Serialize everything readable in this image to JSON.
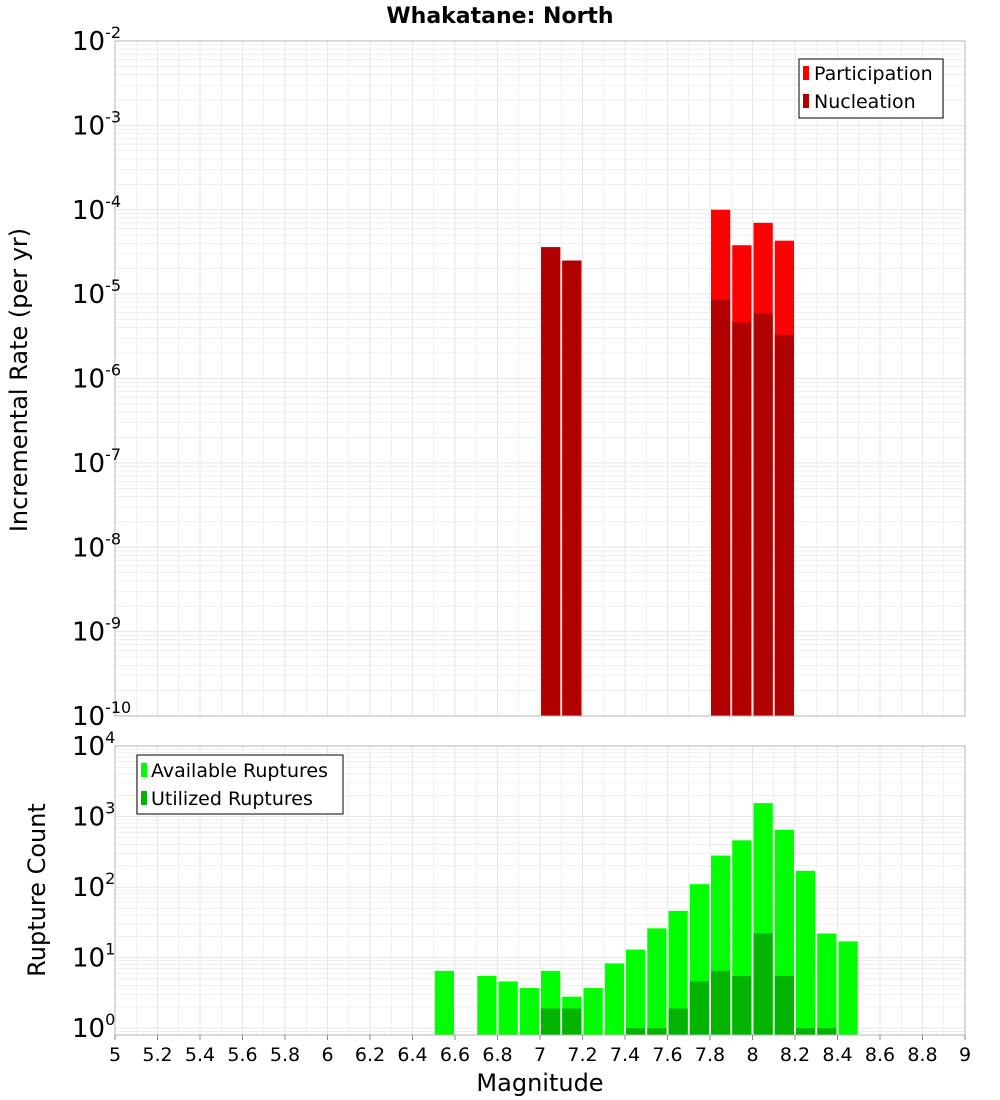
{
  "title": "Whakatane: North",
  "colors": {
    "participation": "#ff0000",
    "nucleation": "#b00000",
    "available": "#00ff00",
    "utilized": "#00b400",
    "grid": "#e6e6e6",
    "frame": "#b4b4b4"
  },
  "chart_data": [
    {
      "type": "bar",
      "panel": "top",
      "ylabel": "Incremental Rate (per yr)",
      "yscale": "log",
      "ylim": [
        1e-10,
        0.01
      ],
      "xlim": [
        5,
        9
      ],
      "bin_width": 0.1,
      "y_tick_exponents": [
        -10,
        -9,
        -8,
        -7,
        -6,
        -5,
        -4,
        -3,
        -2
      ],
      "legend": {
        "placement": "top-right",
        "entries": [
          "Participation",
          "Nucleation"
        ]
      },
      "series": [
        {
          "name": "Participation",
          "x": [
            7.05,
            7.15,
            7.85,
            7.95,
            8.05,
            8.15
          ],
          "values": [
            3.6e-05,
            2.5e-05,
            0.0001,
            3.8e-05,
            7e-05,
            4.3e-05
          ]
        },
        {
          "name": "Nucleation",
          "x": [
            7.05,
            7.15,
            7.85,
            7.95,
            8.05,
            8.15
          ],
          "values": [
            3.6e-05,
            2.5e-05,
            8.5e-06,
            4.6e-06,
            5.9e-06,
            3.3e-06
          ]
        }
      ]
    },
    {
      "type": "bar",
      "panel": "bottom",
      "xlabel": "Magnitude",
      "ylabel": "Rupture Count",
      "yscale": "log",
      "ylim": [
        0.8,
        10000
      ],
      "xlim": [
        5,
        9
      ],
      "bin_width": 0.1,
      "y_tick_exponents": [
        0,
        1,
        2,
        3,
        4
      ],
      "x_ticks": [
        "5",
        "5.2",
        "5.4",
        "5.6",
        "5.8",
        "6",
        "6.2",
        "6.4",
        "6.6",
        "6.8",
        "7",
        "7.2",
        "7.4",
        "7.6",
        "7.8",
        "8",
        "8.2",
        "8.4",
        "8.6",
        "8.8",
        "9"
      ],
      "legend": {
        "placement": "top-left",
        "entries": [
          "Available Ruptures",
          "Utilized Ruptures"
        ]
      },
      "series": [
        {
          "name": "Available Ruptures",
          "x": [
            6.55,
            6.75,
            6.85,
            6.95,
            7.05,
            7.15,
            7.25,
            7.35,
            7.45,
            7.55,
            7.65,
            7.75,
            7.85,
            7.95,
            8.05,
            8.15,
            8.25,
            8.35,
            8.45
          ],
          "values": [
            6.5,
            5.5,
            4.6,
            3.7,
            6.5,
            2.8,
            3.7,
            8.3,
            13,
            26,
            46,
            110,
            280,
            460,
            1550,
            650,
            170,
            22,
            17
          ]
        },
        {
          "name": "Utilized Ruptures",
          "x": [
            7.05,
            7.15,
            7.45,
            7.55,
            7.65,
            7.75,
            7.85,
            7.95,
            8.05,
            8.15,
            8.25,
            8.35
          ],
          "values": [
            1.9,
            1.9,
            1,
            1,
            1.9,
            4.6,
            6.5,
            5.5,
            22,
            5.5,
            1,
            1
          ]
        }
      ]
    }
  ]
}
